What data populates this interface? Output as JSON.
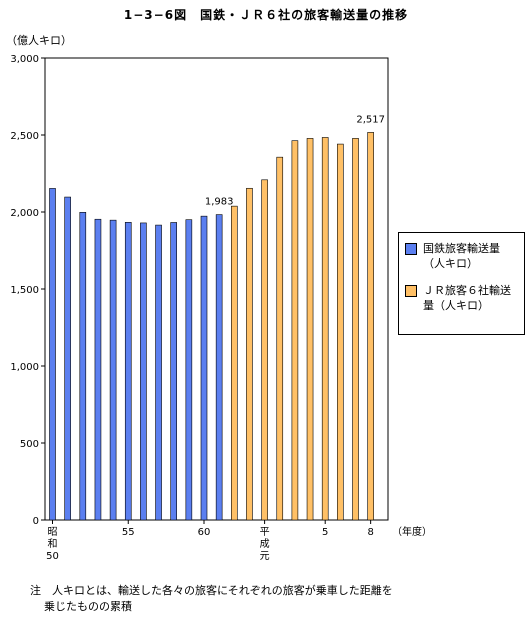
{
  "chart_data": {
    "type": "bar",
    "title": "1−3−6図　国鉄・ＪＲ６社の旅客輸送量の推移",
    "ylabel": "（億人キロ）",
    "xlabel": "（年度）",
    "ylim": [
      0,
      3000
    ],
    "yticks": [
      "0",
      "500",
      "1,000",
      "1,500",
      "2,000",
      "2,500",
      "3,000"
    ],
    "x_labels": [
      {
        "index": 0,
        "text": "昭\n和\n50"
      },
      {
        "index": 5,
        "text": "55"
      },
      {
        "index": 10,
        "text": "60"
      },
      {
        "index": 14,
        "text": "平\n成\n元"
      },
      {
        "index": 18,
        "text": "5"
      },
      {
        "index": 21,
        "text": "8"
      }
    ],
    "series": [
      {
        "name": "国鉄旅客輸送量\n（人キロ）",
        "color": "#5b7ff0",
        "start_index": 0,
        "values": [
          2153,
          2097,
          1998,
          1953,
          1947,
          1933,
          1929,
          1915,
          1932,
          1950,
          1973,
          1983
        ]
      },
      {
        "name": "ＪＲ旅客６社輸送\n量（人キロ）",
        "color": "#ffc066",
        "start_index": 12,
        "values": [
          2038,
          2154,
          2209,
          2356,
          2463,
          2478,
          2484,
          2441,
          2478,
          2517
        ]
      }
    ],
    "data_labels": [
      {
        "series": 0,
        "index": 11,
        "text": "1,983"
      },
      {
        "series": 1,
        "index": 9,
        "text": "2,517"
      }
    ],
    "grid": false,
    "legend": "right"
  },
  "note": {
    "line1": "注　人キロとは、輸送した各々の旅客にそれぞれの旅客が乗車した距離を",
    "line2": "乗じたものの累積"
  }
}
